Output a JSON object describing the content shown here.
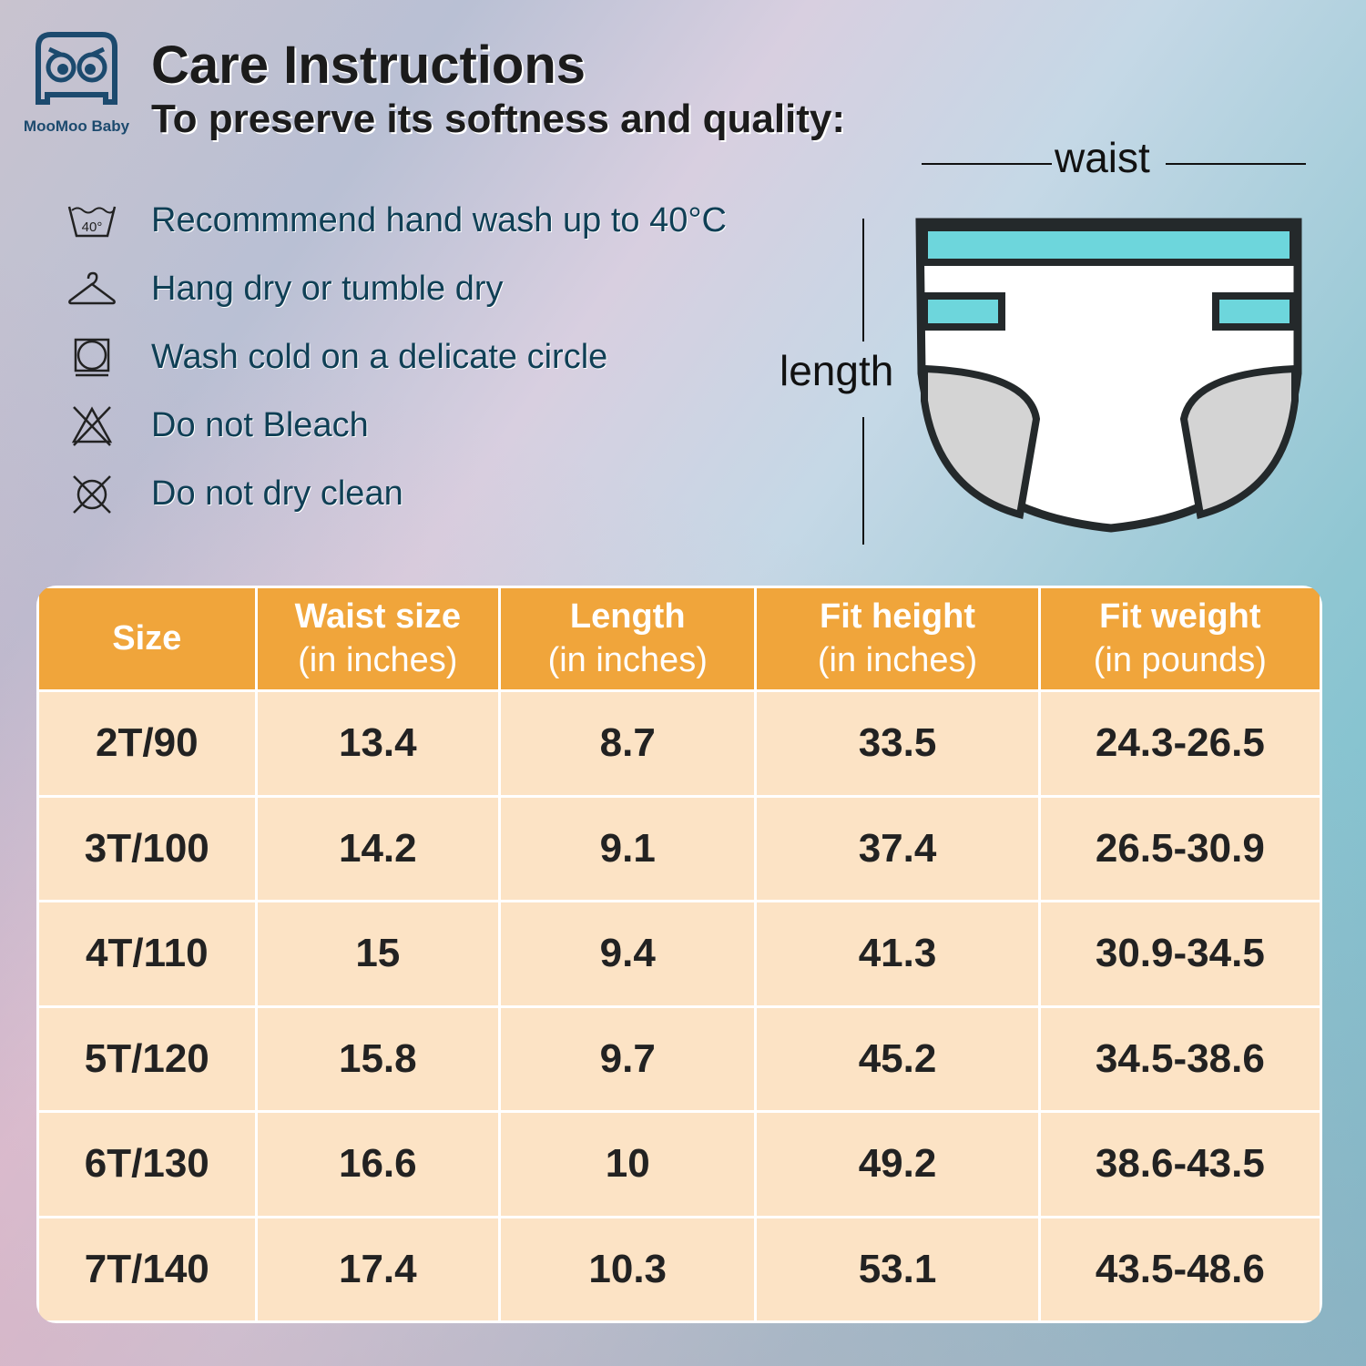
{
  "brand": {
    "name": "MooMoo Baby"
  },
  "title": "Care Instructions",
  "subtitle": "To preserve its softness and quality:",
  "care": [
    {
      "icon": "wash-40-icon",
      "text": "Recommmend hand wash up to 40°C",
      "icon_text": "40°"
    },
    {
      "icon": "hanger-icon",
      "text": "Hang dry or tumble dry"
    },
    {
      "icon": "tumble-dry-icon",
      "text": "Wash cold on a delicate circle"
    },
    {
      "icon": "no-bleach-icon",
      "text": "Do not Bleach"
    },
    {
      "icon": "no-dry-clean-icon",
      "text": "Do not dry clean"
    }
  ],
  "diagram": {
    "waist": "waist",
    "length": "length",
    "colors": {
      "band": "#6dd6dc",
      "outline": "#24292b",
      "gusset": "#d4d4d4"
    }
  },
  "table": {
    "headers": [
      [
        "Size",
        ""
      ],
      [
        "Waist size",
        "(in inches)"
      ],
      [
        "Length",
        "(in inches)"
      ],
      [
        "Fit height",
        "(in inches)"
      ],
      [
        "Fit weight",
        "(in pounds)"
      ]
    ],
    "rows": [
      [
        "2T/90",
        "13.4",
        "8.7",
        "33.5",
        "24.3-26.5"
      ],
      [
        "3T/100",
        "14.2",
        "9.1",
        "37.4",
        "26.5-30.9"
      ],
      [
        "4T/110",
        "15",
        "9.4",
        "41.3",
        "30.9-34.5"
      ],
      [
        "5T/120",
        "15.8",
        "9.7",
        "45.2",
        "34.5-38.6"
      ],
      [
        "6T/130",
        "16.6",
        "10",
        "49.2",
        "38.6-43.5"
      ],
      [
        "7T/140",
        "17.4",
        "10.3",
        "53.1",
        "43.5-48.6"
      ]
    ],
    "colors": {
      "header": "#f0a53b",
      "row": "#fce3c5"
    }
  }
}
